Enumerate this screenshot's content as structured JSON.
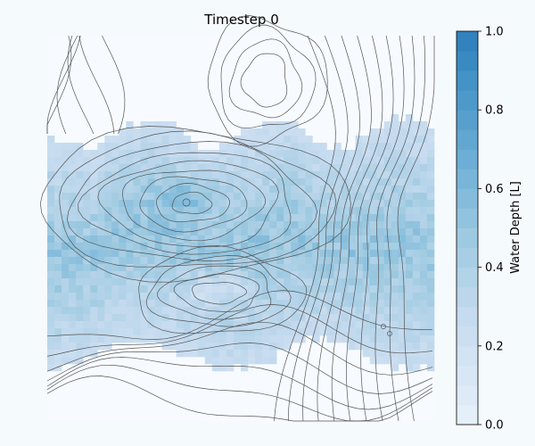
{
  "chart_data": {
    "type": "heatmap",
    "title": "Timestep 0",
    "xlabel": "",
    "ylabel": "",
    "colorbar": {
      "label": "Water Depth [L]",
      "range": [
        0.0,
        1.0
      ],
      "ticks": [
        0.0,
        0.2,
        0.4,
        0.6,
        0.8,
        1.0
      ],
      "tick_labels": [
        "0.0",
        "0.2",
        "0.4",
        "0.6",
        "0.8",
        "1.0"
      ],
      "levels": 20,
      "colormap": "Blues"
    },
    "grid_shape": [
      54,
      54
    ],
    "water_band_rows": [
      13,
      43
    ],
    "typical_depth_range": [
      0.1,
      0.5
    ],
    "peak_depth": 0.7,
    "contours": {
      "color": "#4d4d4d",
      "description": "terrain elevation contour lines overlaid on depth field"
    },
    "axes_visible": false,
    "grid": false
  }
}
